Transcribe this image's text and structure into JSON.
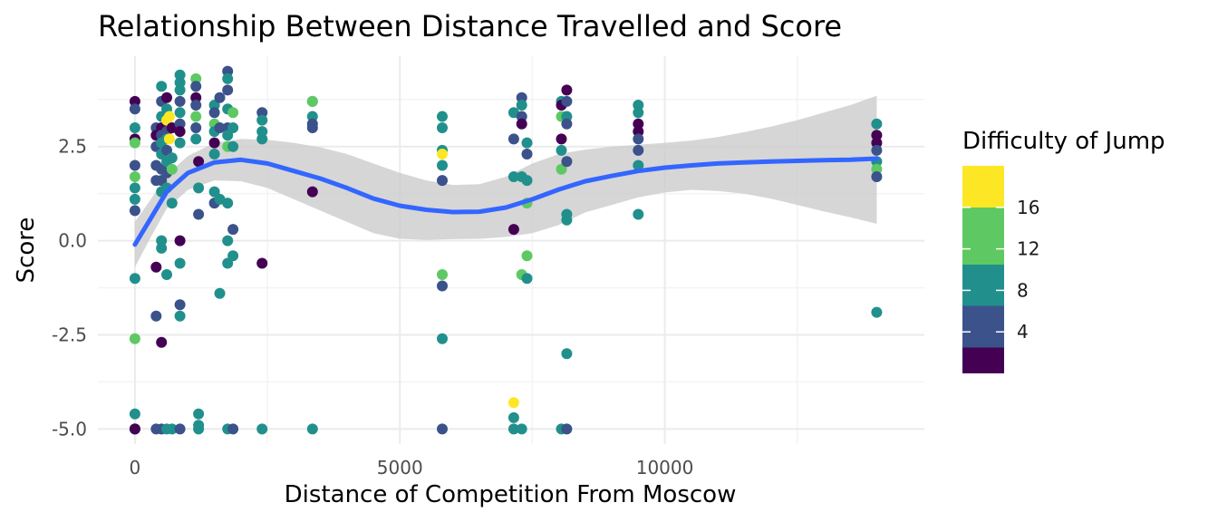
{
  "chart_data": {
    "type": "scatter",
    "title": "Relationship Between Distance Travelled and Score",
    "xlabel": "Distance of Competition From Moscow",
    "ylabel": "Score",
    "xlim": [
      -700,
      14900
    ],
    "ylim": [
      -5.4,
      4.9
    ],
    "x_ticks": [
      0,
      5000,
      10000
    ],
    "x_tick_labels": [
      "0",
      "5000",
      "10000"
    ],
    "y_ticks": [
      -5.0,
      -2.5,
      0.0,
      2.5
    ],
    "y_tick_labels": [
      "-5.0",
      "-2.5",
      "0.0",
      "2.5"
    ],
    "grid": true,
    "legend": {
      "title": "Difficulty of Jump",
      "placement": "right",
      "range": [
        0,
        20
      ],
      "ticks": [
        4,
        8,
        12,
        16
      ],
      "tick_labels": [
        "4",
        "8",
        "12",
        "16"
      ],
      "colors": [
        "#440154",
        "#3b528b",
        "#21908c",
        "#5ec962",
        "#fde725"
      ]
    },
    "smooth": {
      "color": "#3366ff",
      "ribbon_color": "#cccccc",
      "curve": [
        [
          0,
          -0.1
        ],
        [
          300,
          0.6
        ],
        [
          600,
          1.3
        ],
        [
          1000,
          1.8
        ],
        [
          1500,
          2.08
        ],
        [
          2000,
          2.15
        ],
        [
          2500,
          2.05
        ],
        [
          3000,
          1.85
        ],
        [
          3500,
          1.65
        ],
        [
          4000,
          1.4
        ],
        [
          4500,
          1.12
        ],
        [
          5000,
          0.93
        ],
        [
          5500,
          0.82
        ],
        [
          6000,
          0.76
        ],
        [
          6500,
          0.77
        ],
        [
          7000,
          0.88
        ],
        [
          7500,
          1.1
        ],
        [
          8000,
          1.36
        ],
        [
          8500,
          1.58
        ],
        [
          9000,
          1.72
        ],
        [
          9500,
          1.85
        ],
        [
          10000,
          1.94
        ],
        [
          10500,
          2.0
        ],
        [
          11000,
          2.05
        ],
        [
          11500,
          2.08
        ],
        [
          12000,
          2.1
        ],
        [
          12500,
          2.12
        ],
        [
          13000,
          2.14
        ],
        [
          13500,
          2.15
        ],
        [
          14000,
          2.18
        ]
      ],
      "band_upper": [
        [
          0,
          0.5
        ],
        [
          300,
          1.1
        ],
        [
          600,
          1.75
        ],
        [
          1000,
          2.25
        ],
        [
          1500,
          2.6
        ],
        [
          2000,
          2.7
        ],
        [
          2500,
          2.68
        ],
        [
          3000,
          2.6
        ],
        [
          3500,
          2.48
        ],
        [
          4000,
          2.3
        ],
        [
          4500,
          2.05
        ],
        [
          5000,
          1.8
        ],
        [
          5500,
          1.6
        ],
        [
          6000,
          1.48
        ],
        [
          6500,
          1.5
        ],
        [
          7000,
          1.7
        ],
        [
          7500,
          2.05
        ],
        [
          8000,
          2.3
        ],
        [
          8500,
          2.42
        ],
        [
          9000,
          2.5
        ],
        [
          9500,
          2.55
        ],
        [
          10000,
          2.6
        ],
        [
          10500,
          2.66
        ],
        [
          11000,
          2.75
        ],
        [
          11500,
          2.88
        ],
        [
          12000,
          3.03
        ],
        [
          12500,
          3.2
        ],
        [
          13000,
          3.4
        ],
        [
          13500,
          3.6
        ],
        [
          14000,
          3.85
        ]
      ],
      "band_lower": [
        [
          0,
          -0.7
        ],
        [
          300,
          0.1
        ],
        [
          600,
          0.85
        ],
        [
          1000,
          1.35
        ],
        [
          1500,
          1.6
        ],
        [
          2000,
          1.58
        ],
        [
          2500,
          1.4
        ],
        [
          3000,
          1.1
        ],
        [
          3500,
          0.8
        ],
        [
          4000,
          0.5
        ],
        [
          4500,
          0.2
        ],
        [
          5000,
          0.05
        ],
        [
          5500,
          0.02
        ],
        [
          6000,
          0.04
        ],
        [
          6500,
          0.05
        ],
        [
          7000,
          0.1
        ],
        [
          7500,
          0.2
        ],
        [
          8000,
          0.42
        ],
        [
          8500,
          0.75
        ],
        [
          9000,
          0.95
        ],
        [
          9500,
          1.15
        ],
        [
          10000,
          1.28
        ],
        [
          10500,
          1.35
        ],
        [
          11000,
          1.32
        ],
        [
          11500,
          1.25
        ],
        [
          12000,
          1.12
        ],
        [
          12500,
          0.95
        ],
        [
          13000,
          0.78
        ],
        [
          13500,
          0.62
        ],
        [
          14000,
          0.45
        ]
      ]
    },
    "points": [
      [
        0,
        3.7,
        1
      ],
      [
        0,
        3.5,
        6
      ],
      [
        0,
        3.0,
        9
      ],
      [
        0,
        2.7,
        1
      ],
      [
        0,
        2.6,
        15
      ],
      [
        0,
        2.0,
        6
      ],
      [
        0,
        1.7,
        15
      ],
      [
        0,
        1.4,
        9
      ],
      [
        0,
        1.1,
        9
      ],
      [
        0,
        0.8,
        6
      ],
      [
        0,
        -1.0,
        9
      ],
      [
        0,
        -2.6,
        15
      ],
      [
        0,
        -4.6,
        9
      ],
      [
        0,
        -5.0,
        6
      ],
      [
        0,
        -5.0,
        9
      ],
      [
        0,
        -5.0,
        1
      ],
      [
        400,
        3.0,
        6
      ],
      [
        400,
        2.8,
        1
      ],
      [
        400,
        2.5,
        6
      ],
      [
        400,
        2.0,
        6
      ],
      [
        400,
        1.6,
        6
      ],
      [
        400,
        -0.7,
        1
      ],
      [
        400,
        -2.0,
        6
      ],
      [
        400,
        -5.0,
        6
      ],
      [
        500,
        4.1,
        9
      ],
      [
        500,
        3.7,
        6
      ],
      [
        500,
        3.3,
        9
      ],
      [
        500,
        3.0,
        1
      ],
      [
        500,
        2.8,
        6
      ],
      [
        500,
        2.6,
        9
      ],
      [
        500,
        2.3,
        9
      ],
      [
        500,
        1.9,
        6
      ],
      [
        500,
        1.6,
        6
      ],
      [
        500,
        1.3,
        9
      ],
      [
        500,
        0.0,
        9
      ],
      [
        500,
        -0.2,
        9
      ],
      [
        500,
        -2.7,
        1
      ],
      [
        500,
        -5.0,
        6
      ],
      [
        600,
        3.8,
        1
      ],
      [
        600,
        3.5,
        9
      ],
      [
        600,
        3.2,
        17
      ],
      [
        600,
        2.9,
        6
      ],
      [
        600,
        2.7,
        9
      ],
      [
        600,
        2.4,
        6
      ],
      [
        600,
        2.1,
        9
      ],
      [
        600,
        1.8,
        6
      ],
      [
        600,
        1.4,
        9
      ],
      [
        600,
        -0.9,
        9
      ],
      [
        600,
        -5.0,
        9
      ],
      [
        650,
        3.3,
        18
      ],
      [
        650,
        2.7,
        18
      ],
      [
        700,
        3.0,
        1
      ],
      [
        700,
        2.2,
        9
      ],
      [
        700,
        1.9,
        15
      ],
      [
        700,
        1.0,
        9
      ],
      [
        700,
        -5.0,
        9
      ],
      [
        850,
        4.4,
        9
      ],
      [
        850,
        4.2,
        9
      ],
      [
        850,
        4.0,
        9
      ],
      [
        850,
        3.7,
        6
      ],
      [
        850,
        3.4,
        9
      ],
      [
        850,
        3.1,
        6
      ],
      [
        850,
        2.9,
        1
      ],
      [
        850,
        2.6,
        9
      ],
      [
        850,
        0.0,
        1
      ],
      [
        850,
        -0.6,
        9
      ],
      [
        850,
        -1.7,
        6
      ],
      [
        850,
        -2.0,
        9
      ],
      [
        850,
        -5.0,
        6
      ],
      [
        1150,
        4.3,
        15
      ],
      [
        1150,
        4.1,
        6
      ],
      [
        1150,
        3.8,
        1
      ],
      [
        1150,
        3.6,
        6
      ],
      [
        1150,
        3.3,
        15
      ],
      [
        1150,
        3.0,
        6
      ],
      [
        1150,
        2.7,
        9
      ],
      [
        1200,
        2.1,
        3
      ],
      [
        1200,
        1.4,
        9
      ],
      [
        1200,
        0.7,
        6
      ],
      [
        1200,
        -4.6,
        9
      ],
      [
        1200,
        -4.9,
        9
      ],
      [
        1200,
        -5.0,
        9
      ],
      [
        1500,
        3.6,
        9
      ],
      [
        1500,
        3.4,
        6
      ],
      [
        1500,
        3.1,
        15
      ],
      [
        1500,
        2.9,
        9
      ],
      [
        1500,
        2.6,
        1
      ],
      [
        1500,
        2.3,
        9
      ],
      [
        1500,
        1.3,
        9
      ],
      [
        1500,
        1.0,
        6
      ],
      [
        1600,
        3.8,
        6
      ],
      [
        1600,
        3.0,
        6
      ],
      [
        1600,
        1.1,
        9
      ],
      [
        1600,
        -1.4,
        9
      ],
      [
        1750,
        4.5,
        6
      ],
      [
        1750,
        4.3,
        9
      ],
      [
        1750,
        4.0,
        6
      ],
      [
        1750,
        3.5,
        9
      ],
      [
        1750,
        3.0,
        6
      ],
      [
        1750,
        2.8,
        9
      ],
      [
        1750,
        2.5,
        15
      ],
      [
        1750,
        1.0,
        9
      ],
      [
        1750,
        0.0,
        9
      ],
      [
        1750,
        -0.6,
        9
      ],
      [
        1750,
        -5.0,
        9
      ],
      [
        1850,
        3.4,
        15
      ],
      [
        1850,
        3.0,
        9
      ],
      [
        1850,
        2.5,
        9
      ],
      [
        1850,
        0.3,
        6
      ],
      [
        1850,
        -0.4,
        9
      ],
      [
        1850,
        -5.0,
        6
      ],
      [
        2400,
        3.4,
        6
      ],
      [
        2400,
        3.2,
        9
      ],
      [
        2400,
        2.9,
        9
      ],
      [
        2400,
        2.7,
        9
      ],
      [
        2400,
        -0.6,
        1
      ],
      [
        2400,
        -5.0,
        9
      ],
      [
        3350,
        3.7,
        9
      ],
      [
        3350,
        3.7,
        15
      ],
      [
        3350,
        3.3,
        9
      ],
      [
        3350,
        3.1,
        6
      ],
      [
        3350,
        3.0,
        6
      ],
      [
        3350,
        1.3,
        3
      ],
      [
        3350,
        -5.0,
        9
      ],
      [
        5800,
        3.3,
        9
      ],
      [
        5800,
        3.0,
        9
      ],
      [
        5800,
        2.4,
        9
      ],
      [
        5800,
        2.3,
        17
      ],
      [
        5800,
        2.0,
        9
      ],
      [
        5800,
        1.6,
        6
      ],
      [
        5800,
        -0.9,
        15
      ],
      [
        5800,
        -1.2,
        6
      ],
      [
        5800,
        -2.6,
        9
      ],
      [
        5800,
        -5.0,
        6
      ],
      [
        7150,
        3.4,
        9
      ],
      [
        7150,
        2.7,
        6
      ],
      [
        7150,
        1.7,
        9
      ],
      [
        7150,
        0.3,
        3
      ],
      [
        7150,
        -4.3,
        18
      ],
      [
        7150,
        -4.7,
        9
      ],
      [
        7150,
        -5.0,
        9
      ],
      [
        7300,
        3.8,
        6
      ],
      [
        7300,
        3.6,
        9
      ],
      [
        7300,
        3.3,
        6
      ],
      [
        7300,
        3.1,
        1
      ],
      [
        7300,
        1.7,
        9
      ],
      [
        7300,
        -0.9,
        15
      ],
      [
        7300,
        -5.0,
        9
      ],
      [
        7400,
        2.6,
        9
      ],
      [
        7400,
        2.3,
        6
      ],
      [
        7400,
        1.6,
        9
      ],
      [
        7400,
        1.0,
        15
      ],
      [
        7400,
        -0.4,
        15
      ],
      [
        7400,
        -1.0,
        9
      ],
      [
        8050,
        3.7,
        9
      ],
      [
        8050,
        3.6,
        1
      ],
      [
        8050,
        3.3,
        15
      ],
      [
        8050,
        2.7,
        1
      ],
      [
        8050,
        2.4,
        9
      ],
      [
        8050,
        1.9,
        15
      ],
      [
        8050,
        -5.0,
        9
      ],
      [
        8150,
        4.0,
        1
      ],
      [
        8150,
        3.7,
        6
      ],
      [
        8150,
        3.3,
        9
      ],
      [
        8150,
        3.1,
        6
      ],
      [
        8150,
        2.1,
        6
      ],
      [
        8150,
        0.7,
        9
      ],
      [
        8150,
        0.55,
        9
      ],
      [
        8150,
        -3.0,
        9
      ],
      [
        8150,
        -5.0,
        6
      ],
      [
        9500,
        3.6,
        9
      ],
      [
        9500,
        3.4,
        9
      ],
      [
        9500,
        3.1,
        1
      ],
      [
        9500,
        2.9,
        1
      ],
      [
        9500,
        2.7,
        6
      ],
      [
        9500,
        2.4,
        6
      ],
      [
        9500,
        2.0,
        9
      ],
      [
        9500,
        0.7,
        9
      ],
      [
        14000,
        3.1,
        9
      ],
      [
        14000,
        2.8,
        1
      ],
      [
        14000,
        2.6,
        1
      ],
      [
        14000,
        2.4,
        6
      ],
      [
        14000,
        2.1,
        9
      ],
      [
        14000,
        1.9,
        15
      ],
      [
        14000,
        1.7,
        6
      ],
      [
        14000,
        -1.9,
        9
      ]
    ]
  }
}
